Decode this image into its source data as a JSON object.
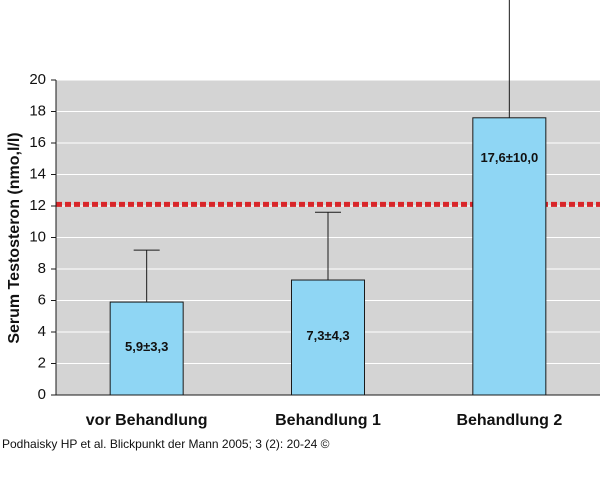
{
  "chart_data": {
    "type": "bar",
    "categories": [
      "vor Behandlung",
      "Behandlung 1",
      "Behandlung 2"
    ],
    "values": [
      5.9,
      7.3,
      17.6
    ],
    "errors": [
      3.3,
      4.3,
      10.0
    ],
    "data_labels": [
      "5,9±3,3",
      "7,3±4,3",
      "17,6±10,0"
    ],
    "ylabel": "Serum Testosteron (nmo,l/l)",
    "ylim": [
      0,
      20
    ],
    "yticks": [
      0,
      2,
      4,
      6,
      8,
      10,
      12,
      14,
      16,
      18,
      20
    ],
    "reference_line": 12.1,
    "grid": true,
    "colors": {
      "bar": "#8fd6f4",
      "plot_bg": "#d4d4d4",
      "grid": "#ffffff",
      "reference_line": "#d9262a",
      "edge": "#1a1a1a"
    }
  },
  "source_text": "Podhaisky HP et al. Blickpunkt der Mann 2005; 3 (2): 20-24 ©"
}
